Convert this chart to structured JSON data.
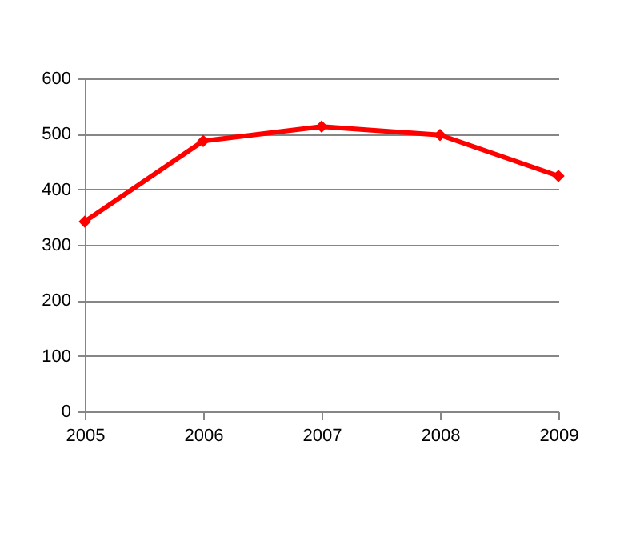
{
  "chart_data": {
    "type": "line",
    "x": [
      2005,
      2006,
      2007,
      2008,
      2009
    ],
    "series": [
      {
        "color": "#ff0000",
        "values": [
          342,
          487,
          513,
          498,
          424
        ]
      }
    ],
    "marker": "diamond",
    "xlim": [
      2005,
      2009
    ],
    "xticks": [
      2005,
      2006,
      2007,
      2008,
      2009
    ],
    "ylim": [
      0,
      600
    ],
    "yticks": [
      0,
      100,
      200,
      300,
      400,
      500,
      600
    ],
    "grid": "y",
    "legend": false
  }
}
